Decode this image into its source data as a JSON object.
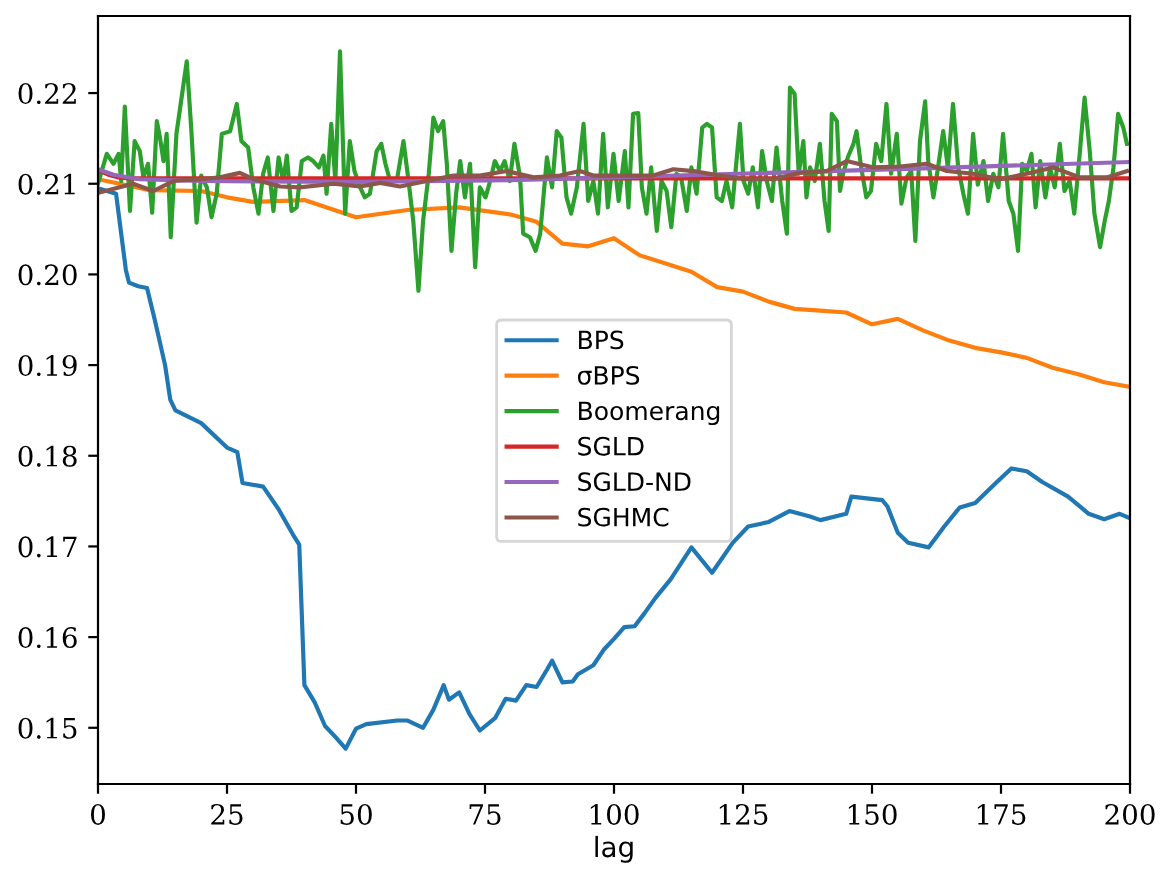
{
  "chart_data": {
    "type": "line",
    "xlabel": "lag",
    "xlim": [
      0,
      200
    ],
    "xticks": [
      0,
      25,
      50,
      75,
      100,
      125,
      150,
      175,
      200
    ],
    "ylim": [
      0.1438,
      0.2285
    ],
    "yticks": [
      0.15,
      0.16,
      0.17,
      0.18,
      0.19,
      {
        "value": 0.2,
        "label": "0.20"
      },
      0.21,
      0.22
    ],
    "grid": false,
    "legend": "center",
    "marker": "none",
    "line_style": "solid",
    "series": [
      {
        "name": "BPS",
        "color": "#1f77b4",
        "x": [
          0,
          3.5,
          5.4,
          6,
          7.8,
          9.5,
          11,
          13,
          14,
          15,
          20,
          25,
          27,
          28,
          32,
          35,
          38,
          39,
          40,
          42,
          44,
          46,
          48,
          50,
          52,
          58,
          60,
          63,
          65,
          67,
          68,
          70,
          72,
          74,
          77,
          79,
          81,
          83,
          85,
          87,
          88,
          90,
          92,
          93,
          96,
          98,
          100,
          102,
          104,
          106,
          108,
          111,
          115,
          119,
          123,
          126,
          130,
          134,
          138,
          140,
          145,
          146,
          152,
          153,
          155,
          157,
          161,
          164,
          167,
          170,
          174,
          177,
          180,
          183,
          188,
          192,
          195,
          198,
          200
        ],
        "values": [
          0.2095,
          0.2089,
          0.2005,
          0.1991,
          0.1987,
          0.1985,
          0.195,
          0.19,
          0.1862,
          0.185,
          0.1836,
          0.1809,
          0.1804,
          0.177,
          0.1766,
          0.1741,
          0.1711,
          0.1702,
          0.1547,
          0.1528,
          0.1502,
          0.149,
          0.1477,
          0.1499,
          0.1504,
          0.1508,
          0.1508,
          0.15,
          0.152,
          0.1547,
          0.1531,
          0.1539,
          0.1515,
          0.1497,
          0.1511,
          0.1532,
          0.153,
          0.1547,
          0.1545,
          0.1564,
          0.1574,
          0.155,
          0.1551,
          0.1559,
          0.1569,
          0.1586,
          0.1598,
          0.1611,
          0.1612,
          0.1627,
          0.1643,
          0.1664,
          0.1699,
          0.1671,
          0.1704,
          0.1722,
          0.1727,
          0.1739,
          0.1733,
          0.1729,
          0.1736,
          0.1755,
          0.1751,
          0.1744,
          0.1715,
          0.1704,
          0.1699,
          0.1722,
          0.1743,
          0.1748,
          0.177,
          0.1786,
          0.1783,
          0.1771,
          0.1755,
          0.1736,
          0.173,
          0.1736,
          0.1731
        ]
      },
      {
        "name": "σBPS",
        "color": "#ff7f0e",
        "x": [
          0,
          10,
          20,
          25,
          30,
          40,
          50,
          60,
          70,
          80,
          85,
          90,
          95,
          100,
          105,
          110,
          115,
          120,
          125,
          130,
          135,
          140,
          145,
          150,
          155,
          160,
          165,
          170,
          175,
          180,
          185,
          190,
          195,
          200
        ],
        "values": [
          0.2105,
          0.2093,
          0.2092,
          0.2085,
          0.208,
          0.2082,
          0.2063,
          0.2071,
          0.2074,
          0.2066,
          0.2058,
          0.2034,
          0.2031,
          0.204,
          0.2021,
          0.2012,
          0.2003,
          0.1986,
          0.1981,
          0.197,
          0.1962,
          0.196,
          0.1958,
          0.1945,
          0.1951,
          0.1938,
          0.1927,
          0.1919,
          0.1914,
          0.1908,
          0.1897,
          0.189,
          0.1881,
          0.1876
        ]
      },
      {
        "name": "Boomerang",
        "color": "#2ca02c",
        "x": [
          0,
          1.7,
          3.0,
          4.0,
          4.5,
          5.2,
          6.2,
          7.1,
          8.1,
          8.8,
          9.7,
          10.5,
          11.4,
          12.0,
          12.7,
          13.3,
          14.1,
          15.2,
          17.2,
          18.1,
          19.1,
          20.0,
          21.1,
          22.0,
          23.0,
          24.0,
          25.6,
          26.9,
          27.8,
          29.1,
          30.1,
          31.1,
          32.0,
          32.9,
          34.0,
          35.0,
          35.9,
          36.6,
          37.5,
          38.5,
          39.5,
          40.7,
          41.7,
          42.8,
          43.7,
          44.3,
          45.2,
          46.0,
          46.9,
          47.9,
          48.8,
          49.7,
          50.8,
          51.7,
          52.7,
          54.0,
          54.9,
          55.7,
          56.6,
          57.9,
          59.2,
          60.1,
          61.1,
          62.1,
          63.0,
          64.1,
          65.0,
          65.9,
          66.9,
          67.6,
          68.5,
          69.4,
          70.2,
          71.1,
          72.1,
          73.1,
          74.0,
          75.1,
          76.0,
          76.9,
          77.9,
          78.8,
          79.8,
          80.7,
          81.8,
          82.4,
          83.7,
          84.8,
          85.7,
          87.0,
          88.0,
          88.9,
          89.8,
          90.8,
          91.7,
          92.8,
          94.1,
          95.0,
          96.0,
          96.9,
          97.9,
          98.8,
          99.9,
          100.9,
          102.1,
          102.8,
          103.7,
          104.7,
          105.4,
          106.3,
          107.2,
          108.3,
          109.2,
          110.2,
          111.1,
          112.1,
          113.0,
          114.1,
          115.0,
          116.0,
          117.1,
          118.0,
          119.0,
          119.9,
          120.9,
          121.8,
          122.9,
          123.8,
          124.4,
          125.1,
          126.0,
          126.9,
          127.9,
          128.7,
          129.6,
          130.6,
          131.5,
          132.6,
          133.5,
          134.1,
          135.0,
          135.8,
          136.7,
          137.3,
          138.0,
          138.9,
          139.9,
          140.8,
          141.6,
          142.2,
          143.2,
          143.8,
          144.4,
          145.3,
          146.4,
          147.0,
          147.9,
          148.9,
          149.8,
          150.8,
          151.8,
          152.8,
          153.7,
          154.8,
          155.7,
          156.7,
          157.6,
          158.4,
          159.3,
          160.3,
          160.9,
          161.9,
          162.8,
          163.8,
          164.7,
          165.7,
          166.7,
          167.7,
          168.6,
          169.6,
          170.5,
          171.6,
          172.5,
          173.5,
          174.5,
          175.4,
          176.5,
          177.4,
          178.3,
          179.1,
          180.0,
          180.9,
          181.7,
          182.6,
          183.6,
          184.5,
          185.4,
          186.4,
          187.3,
          188.3,
          189.2,
          190.3,
          191.2,
          192.2,
          193.1,
          194.2,
          195.1,
          195.9,
          196.8,
          197.7,
          198.7,
          199.4
        ],
        "values": [
          0.21,
          0.2133,
          0.2122,
          0.2133,
          0.2103,
          0.2185,
          0.207,
          0.2147,
          0.2136,
          0.2107,
          0.2122,
          0.2068,
          0.2169,
          0.2151,
          0.2125,
          0.2155,
          0.2041,
          0.2155,
          0.2235,
          0.2158,
          0.2057,
          0.2109,
          0.2096,
          0.2063,
          0.2089,
          0.2155,
          0.2158,
          0.2188,
          0.2147,
          0.214,
          0.2096,
          0.2067,
          0.2111,
          0.2129,
          0.207,
          0.2129,
          0.2103,
          0.2131,
          0.207,
          0.2074,
          0.2125,
          0.2129,
          0.2125,
          0.2118,
          0.2131,
          0.2089,
          0.2166,
          0.2103,
          0.2246,
          0.2067,
          0.2147,
          0.2114,
          0.2096,
          0.2085,
          0.2089,
          0.2136,
          0.2144,
          0.2122,
          0.2103,
          0.2103,
          0.2147,
          0.2107,
          0.2059,
          0.1982,
          0.2059,
          0.2111,
          0.2173,
          0.2158,
          0.2169,
          0.2122,
          0.2026,
          0.2089,
          0.2125,
          0.2085,
          0.2122,
          0.2008,
          0.2096,
          0.2085,
          0.2103,
          0.2125,
          0.2114,
          0.2125,
          0.2103,
          0.2144,
          0.2107,
          0.2045,
          0.2041,
          0.2026,
          0.2045,
          0.2129,
          0.2096,
          0.2158,
          0.2151,
          0.2085,
          0.2067,
          0.2096,
          0.2166,
          0.2081,
          0.2103,
          0.2067,
          0.2155,
          0.2074,
          0.2133,
          0.2081,
          0.2136,
          0.2074,
          0.2177,
          0.2178,
          0.2096,
          0.2067,
          0.2118,
          0.2048,
          0.2103,
          0.2092,
          0.2052,
          0.2111,
          0.2107,
          0.207,
          0.2118,
          0.2089,
          0.2162,
          0.2166,
          0.2162,
          0.2085,
          0.2081,
          0.2103,
          0.2074,
          0.2129,
          0.2166,
          0.2103,
          0.2089,
          0.2118,
          0.2074,
          0.2136,
          0.2103,
          0.2081,
          0.214,
          0.2081,
          0.2045,
          0.2206,
          0.2199,
          0.2111,
          0.2147,
          0.2085,
          0.2118,
          0.2103,
          0.2144,
          0.2081,
          0.2048,
          0.2177,
          0.2169,
          0.2092,
          0.2111,
          0.2129,
          0.2144,
          0.2158,
          0.2118,
          0.2085,
          0.2092,
          0.2144,
          0.2125,
          0.2188,
          0.2111,
          0.2155,
          0.2078,
          0.2107,
          0.2114,
          0.2037,
          0.2147,
          0.2191,
          0.2125,
          0.2085,
          0.2118,
          0.2158,
          0.2118,
          0.2188,
          0.2118,
          0.2089,
          0.2067,
          0.2155,
          0.2099,
          0.2125,
          0.2081,
          0.2111,
          0.2096,
          0.2155,
          0.2081,
          0.2067,
          0.2026,
          0.2122,
          0.2114,
          0.2133,
          0.2074,
          0.2125,
          0.2085,
          0.2118,
          0.2096,
          0.2144,
          0.2092,
          0.2103,
          0.2067,
          0.2136,
          0.2195,
          0.2136,
          0.2067,
          0.203,
          0.2059,
          0.2081,
          0.2118,
          0.2177,
          0.2162,
          0.2144
        ]
      },
      {
        "name": "SGLD",
        "color": "#d62728",
        "x": [
          0,
          2,
          4,
          6,
          200
        ],
        "values": [
          0.2115,
          0.211,
          0.2107,
          0.2106,
          0.2106
        ]
      },
      {
        "name": "SGLD-ND",
        "color": "#9467bd",
        "x": [
          0,
          3,
          8,
          20,
          50,
          80,
          100,
          130,
          160,
          200
        ],
        "values": [
          0.2116,
          0.211,
          0.2105,
          0.2103,
          0.2102,
          0.2104,
          0.2107,
          0.2112,
          0.2117,
          0.2124
        ]
      },
      {
        "name": "SGHMC",
        "color": "#8c564b",
        "x": [
          0,
          6.8,
          10.7,
          14.6,
          19.8,
          23.6,
          27.5,
          30.1,
          35.3,
          39.1,
          45.6,
          50.8,
          54.7,
          58.5,
          63.7,
          68.9,
          74.0,
          79.2,
          84.4,
          89.5,
          93.4,
          96.0,
          102.5,
          107.6,
          111.5,
          115.4,
          120.5,
          125.7,
          130.9,
          136.0,
          141.2,
          145.1,
          150.3,
          155.4,
          160.6,
          164.5,
          169.6,
          174.8,
          180.0,
          185.1,
          190.3,
          195.5,
          199.4
        ],
        "values": [
          0.209,
          0.21,
          0.2092,
          0.2103,
          0.2105,
          0.2107,
          0.2112,
          0.2105,
          0.2097,
          0.2096,
          0.21,
          0.2097,
          0.2101,
          0.2097,
          0.2103,
          0.2109,
          0.2109,
          0.2114,
          0.2107,
          0.2109,
          0.2114,
          0.2109,
          0.2109,
          0.2109,
          0.2116,
          0.2114,
          0.2109,
          0.2105,
          0.2105,
          0.2112,
          0.2114,
          0.2125,
          0.2118,
          0.2119,
          0.2122,
          0.2114,
          0.2111,
          0.2105,
          0.2111,
          0.2118,
          0.2107,
          0.2107,
          0.2114
        ]
      }
    ]
  }
}
